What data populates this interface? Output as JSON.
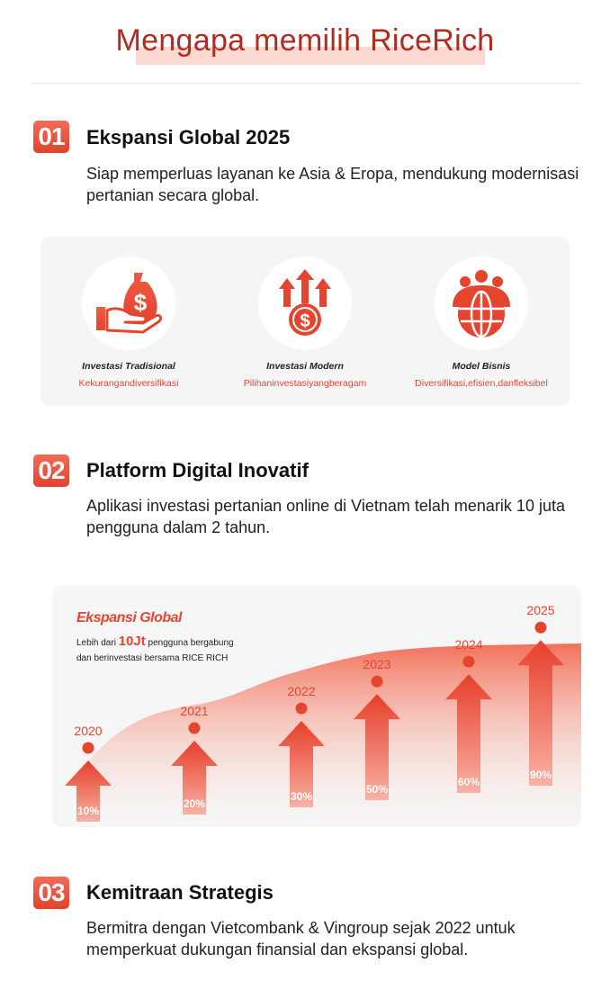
{
  "header": {
    "title": "Mengapa memilih RiceRich"
  },
  "sections": [
    {
      "number": "01",
      "title": "Ekspansi Global 2025",
      "text": "Siap memperluas layanan ke Asia & Eropa, mendukung modernisasi pertanian secara global."
    },
    {
      "number": "02",
      "title": "Platform Digital Inovatif",
      "text": "Aplikasi investasi pertanian online di Vietnam telah menarik 10 juta pengguna dalam 2 tahun."
    },
    {
      "number": "03",
      "title": "Kemitraan Strategis",
      "text": "Bermitra dengan Vietcombank & Vingroup sejak 2022 untuk memperkuat dukungan finansial dan ekspansi global."
    }
  ],
  "features": [
    {
      "title": "Investasi Tradisional",
      "subtitle": "Kekurangandiversifikasi",
      "icon": "money-bag-hand-icon"
    },
    {
      "title": "Investasi Modern",
      "subtitle": "Pilihaninvestasiyangberagam",
      "icon": "coin-growth-arrows-icon"
    },
    {
      "title": "Model Bisnis",
      "subtitle": "Diversifikasi,efisien,danfleksibel",
      "icon": "people-globe-icon"
    }
  ],
  "growth": {
    "heading": "Ekspansi Global",
    "line1_prefix": "Lebih dari",
    "line1_highlight": "10Jt",
    "line1_suffix": "pengguna bergabung",
    "line2": "dan berinvestasi bersama RICE RICH"
  },
  "colors": {
    "accent": "#e5452f",
    "title": "#b52a1f",
    "highlight": "#fbd9d2"
  },
  "chart_data": {
    "type": "bar",
    "categories": [
      "2020",
      "2021",
      "2022",
      "2023",
      "2024",
      "2025"
    ],
    "values": [
      10,
      20,
      30,
      50,
      60,
      90
    ],
    "labels": [
      "10%",
      "20%",
      "30%",
      "50%",
      "60%",
      "90%"
    ]
  }
}
